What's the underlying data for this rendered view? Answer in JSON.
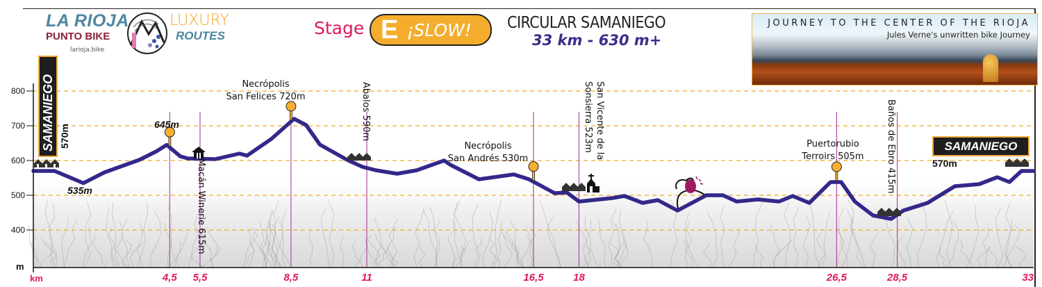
{
  "header": {
    "brand_line1": "LA RIOJA",
    "brand_line2": "PUNTO BIKE",
    "brand_url": "larioja.bike",
    "luxury_line1": "LUXURY",
    "luxury_line2": "ROUTES",
    "stage_label": "Stage",
    "stage_letter": "E",
    "stage_pace": "¡SLOW!",
    "route_title": "CIRCULAR SAMANIEGO",
    "route_summary": "33 km - 630 m+",
    "banner_title": "JOURNEY TO THE CENTER OF THE RIOJA",
    "banner_subtitle": "Jules Verne's unwritten bike Journey"
  },
  "colors": {
    "profile_line": "#33288a",
    "gridline": "#f5a623",
    "km_labels": "#e0195a",
    "marker_line": "#b04aa8",
    "pin": "#f8ae2e"
  },
  "start": {
    "name": "SAMANIEGO",
    "elevation": "570m"
  },
  "finish": {
    "name": "SAMANIEGO",
    "elevation": "570m"
  },
  "labels": {
    "low_point": "535m",
    "hill_point": "645m",
    "san_felices_l1": "Necrópolis",
    "san_felices_l2": "San Felices 720m",
    "macan": "Macán Winerie 615m",
    "abalos": "Abalos 590m",
    "san_andres_l1": "Necrópolis",
    "san_andres_l2": "San Andrés 530m",
    "san_vicente_l1": "San Vicente de la",
    "san_vicente_l2": "Sonsierra 523m",
    "puertorubio_l1": "Puertorubio",
    "puertorubio_l2": "Terroirs 505m",
    "banos": "Baños de Ebro 415m"
  },
  "chart_data": {
    "type": "area",
    "title": "CIRCULAR SAMANIEGO",
    "xlabel": "km",
    "ylabel": "m",
    "xlim": [
      0,
      33
    ],
    "ylim": [
      290,
      860
    ],
    "grid": true,
    "y_ticks": [
      800,
      700,
      600,
      500,
      400
    ],
    "x_ticks": [
      "4,5",
      "5,5",
      "8,5",
      "11",
      "16,5",
      "18",
      "26,5",
      "28,5",
      "33"
    ],
    "x_tick_values": [
      4.5,
      5.5,
      8.5,
      11,
      16.5,
      18,
      26.5,
      28.5,
      33
    ],
    "profile": {
      "km": [
        0,
        0.7,
        1.65,
        2.35,
        3.5,
        4.05,
        4.4,
        4.85,
        5.1,
        6.0,
        6.8,
        7.05,
        7.85,
        8.6,
        9.0,
        9.45,
        10.35,
        10.85,
        11.3,
        12.0,
        12.65,
        13.55,
        13.75,
        14.7,
        15.85,
        16.35,
        17.2,
        17.6,
        18.0,
        19.1,
        19.5,
        20.1,
        20.6,
        21.25,
        22.2,
        22.75,
        23.2,
        23.9,
        24.6,
        25.05,
        25.6,
        26.3,
        26.65,
        27.1,
        27.7,
        28.3,
        28.7,
        29.5,
        30.4,
        31.2,
        31.8,
        32.2,
        32.6,
        33
      ],
      "elevation": [
        570,
        570,
        535,
        566,
        602,
        626,
        645,
        612,
        606,
        604,
        620,
        614,
        662,
        720,
        702,
        646,
        602,
        582,
        572,
        562,
        572,
        600,
        588,
        546,
        560,
        546,
        506,
        508,
        482,
        492,
        498,
        478,
        486,
        456,
        500,
        500,
        482,
        488,
        482,
        498,
        478,
        538,
        538,
        482,
        442,
        432,
        456,
        478,
        526,
        532,
        552,
        538,
        570,
        570
      ]
    },
    "pins_km": [
      4.5,
      8.5,
      16.5,
      26.5
    ],
    "markers_km": [
      4.5,
      5.5,
      8.5,
      11,
      16.5,
      18,
      26.5,
      28.5
    ]
  }
}
